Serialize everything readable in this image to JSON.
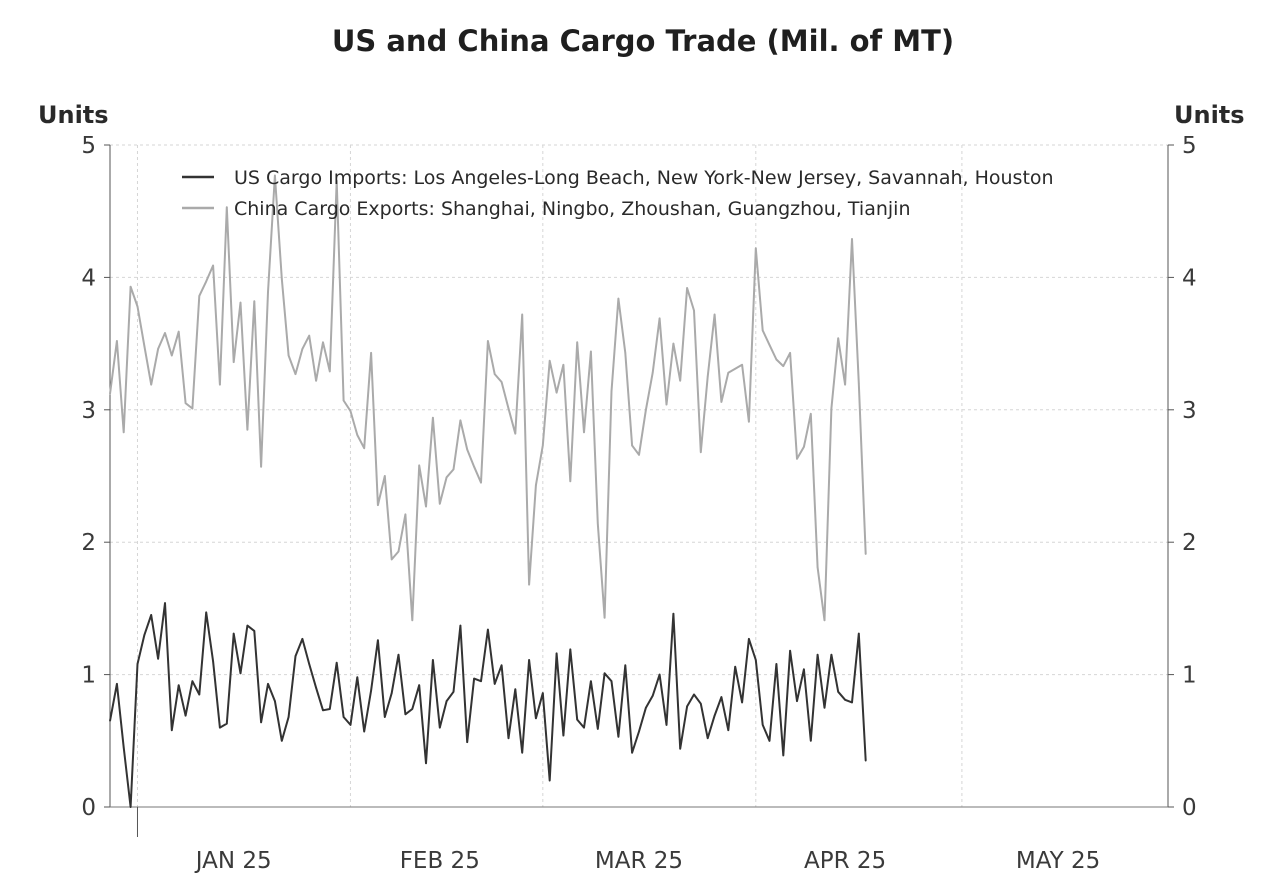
{
  "chart_data": {
    "type": "line",
    "title": "US and China Cargo Trade (Mil. of MT)",
    "ylabel_left": "Units",
    "ylabel_right": "Units",
    "ylim": [
      0,
      5
    ],
    "yticks": [
      0,
      1,
      2,
      3,
      4,
      5
    ],
    "xlim": [
      "2024-12-28",
      "2025-05-31"
    ],
    "x_tick_labels": [
      {
        "date": "2025-01-15",
        "label": "JAN 25"
      },
      {
        "date": "2025-02-14",
        "label": "FEB 25"
      },
      {
        "date": "2025-03-15",
        "label": "MAR 25"
      },
      {
        "date": "2025-04-14",
        "label": "APR 25"
      },
      {
        "date": "2025-05-15",
        "label": "MAY 25"
      }
    ],
    "x_grid_dates": [
      "2025-01-01",
      "2025-02-01",
      "2025-03-01",
      "2025-04-01",
      "2025-05-01"
    ],
    "grid": true,
    "legend_position": "top",
    "series": [
      {
        "name": "US Cargo Imports: Los Angeles-Long Beach, New York-New Jersey, Savannah, Houston",
        "color": "#333333",
        "start_date": "2024-12-28",
        "values": [
          0.65,
          0.93,
          0.45,
          0.0,
          1.08,
          1.3,
          1.45,
          1.12,
          1.54,
          0.58,
          0.92,
          0.69,
          0.95,
          0.85,
          1.47,
          1.1,
          0.6,
          0.63,
          1.31,
          1.01,
          1.37,
          1.33,
          0.64,
          0.93,
          0.8,
          0.5,
          0.68,
          1.14,
          1.27,
          1.08,
          0.9,
          0.73,
          0.74,
          1.09,
          0.68,
          0.62,
          0.98,
          0.57,
          0.88,
          1.26,
          0.68,
          0.86,
          1.15,
          0.7,
          0.74,
          0.92,
          0.33,
          1.11,
          0.6,
          0.8,
          0.87,
          1.37,
          0.49,
          0.97,
          0.95,
          1.34,
          0.93,
          1.07,
          0.52,
          0.89,
          0.41,
          1.11,
          0.67,
          0.86,
          0.2,
          1.16,
          0.54,
          1.19,
          0.66,
          0.6,
          0.95,
          0.59,
          1.01,
          0.95,
          0.53,
          1.07,
          0.41,
          0.57,
          0.75,
          0.84,
          1.0,
          0.62,
          1.46,
          0.44,
          0.76,
          0.85,
          0.78,
          0.52,
          0.69,
          0.83,
          0.58,
          1.06,
          0.79,
          1.27,
          1.11,
          0.62,
          0.5,
          1.08,
          0.39,
          1.18,
          0.8,
          1.04,
          0.5,
          1.15,
          0.75,
          1.15,
          0.87,
          0.81,
          0.79,
          1.31,
          0.35
        ]
      },
      {
        "name": "China Cargo Exports: Shanghai, Ningbo, Zhoushan, Guangzhou, Tianjin",
        "color": "#aaaaaa",
        "start_date": "2024-12-28",
        "values": [
          3.12,
          3.52,
          2.83,
          3.93,
          3.78,
          3.48,
          3.19,
          3.46,
          3.58,
          3.41,
          3.59,
          3.05,
          3.01,
          3.86,
          3.97,
          4.09,
          3.19,
          4.53,
          3.36,
          3.81,
          2.85,
          3.82,
          2.57,
          3.89,
          4.77,
          3.99,
          3.41,
          3.27,
          3.46,
          3.56,
          3.22,
          3.51,
          3.29,
          4.73,
          3.07,
          2.99,
          2.81,
          2.71,
          3.43,
          2.28,
          2.5,
          1.87,
          1.93,
          2.21,
          1.41,
          2.58,
          2.27,
          2.94,
          2.29,
          2.49,
          2.55,
          2.92,
          2.7,
          2.57,
          2.45,
          3.52,
          3.27,
          3.21,
          3.01,
          2.82,
          3.72,
          1.68,
          2.43,
          2.73,
          3.37,
          3.13,
          3.34,
          2.46,
          3.51,
          2.83,
          3.44,
          2.14,
          1.43,
          3.14,
          3.84,
          3.43,
          2.73,
          2.66,
          3.0,
          3.28,
          3.69,
          3.04,
          3.5,
          3.22,
          3.92,
          3.75,
          2.68,
          3.25,
          3.72,
          3.06,
          3.28,
          3.31,
          3.34,
          2.91,
          4.22,
          3.6,
          3.49,
          3.38,
          3.33,
          3.43,
          2.63,
          2.72,
          2.97,
          1.81,
          1.41,
          3.01,
          3.54,
          3.19,
          4.29,
          3.2,
          1.91
        ]
      }
    ]
  }
}
